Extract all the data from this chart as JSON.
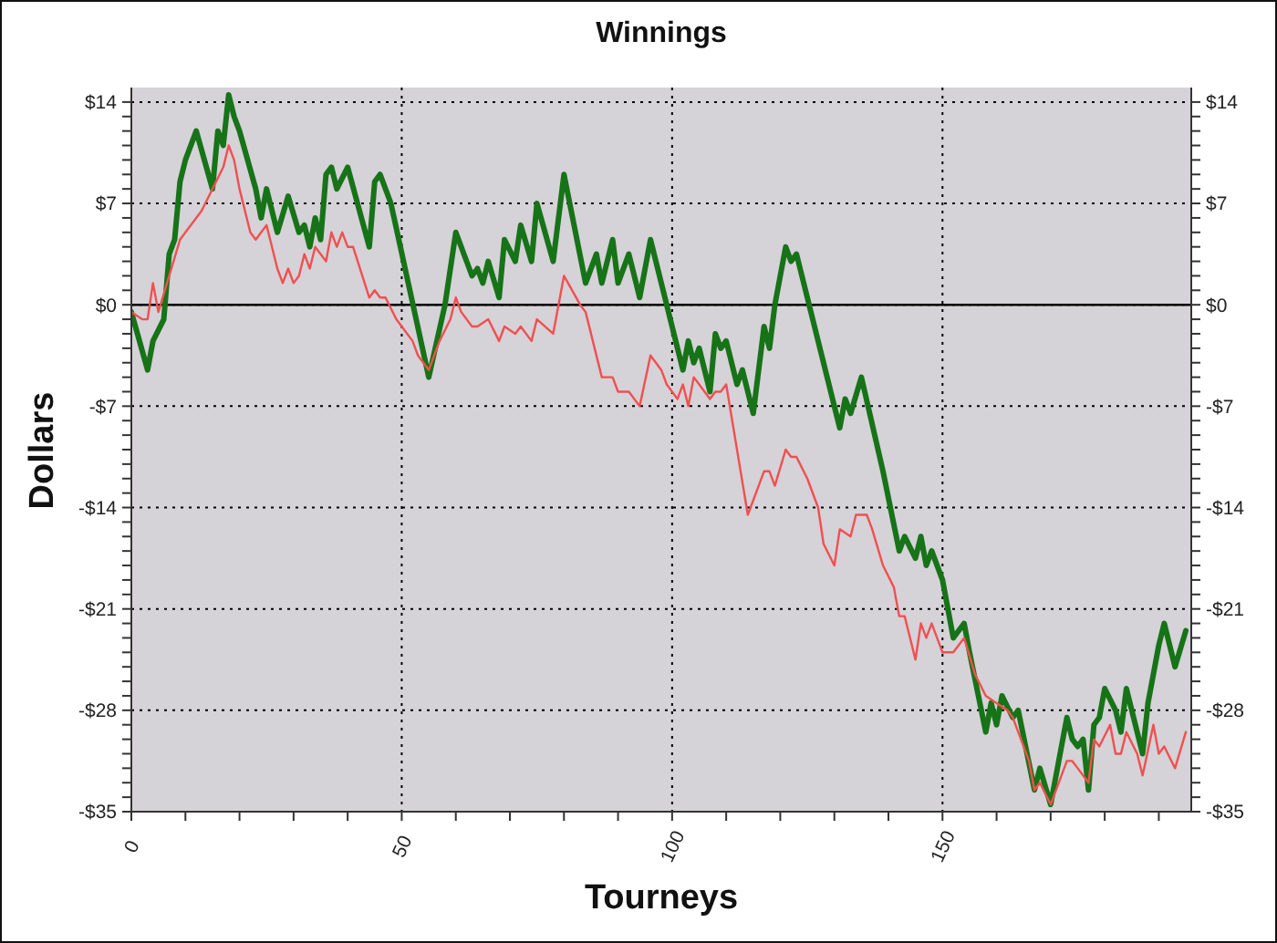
{
  "chart_data": {
    "type": "line",
    "title": "Winnings",
    "xlabel": "Tourneys",
    "ylabel": "Dollars",
    "series": [
      {
        "color": "#177317",
        "x": [
          0,
          3,
          4,
          6,
          7,
          8,
          9,
          10,
          12,
          15,
          16,
          17,
          18,
          19,
          20,
          23,
          24,
          25,
          27,
          29,
          31,
          32,
          33,
          34,
          35,
          36,
          37,
          38,
          40,
          44,
          45,
          46,
          48,
          55,
          58,
          60,
          63,
          64,
          65,
          66,
          68,
          69,
          71,
          72,
          74,
          75,
          78,
          80,
          84,
          86,
          87,
          89,
          90,
          92,
          94,
          96,
          99,
          102,
          103,
          104,
          105,
          107,
          108,
          109,
          110,
          112,
          113,
          115,
          117,
          118,
          119,
          121,
          122,
          123,
          131,
          132,
          133,
          135,
          139,
          142,
          143,
          145,
          146,
          147,
          148,
          150,
          152,
          154,
          155,
          158,
          159,
          160,
          161,
          163,
          164,
          167,
          168,
          170,
          173,
          174,
          175,
          176,
          177,
          178,
          179,
          180,
          182,
          183,
          184,
          187,
          188,
          190,
          191,
          193,
          195
        ],
        "values": [
          -0.5,
          -4.5,
          -2.5,
          -1,
          3.5,
          4.5,
          8.5,
          10,
          12,
          8,
          12,
          11,
          14.5,
          13,
          12,
          8,
          6,
          8,
          5,
          7.5,
          5,
          5.5,
          4,
          6,
          4.5,
          9,
          9.5,
          8,
          9.5,
          4,
          8.5,
          9,
          7,
          -5,
          0,
          5,
          2,
          2.5,
          1.5,
          3,
          0.5,
          4.5,
          3,
          5.5,
          3,
          7,
          3,
          9,
          1.5,
          3.5,
          1.5,
          4.5,
          1.5,
          3.5,
          0.5,
          4.5,
          0,
          -4.5,
          -2.5,
          -4,
          -3,
          -6,
          -2,
          -3,
          -2.5,
          -5.5,
          -4.5,
          -7.5,
          -1.5,
          -3,
          0,
          4,
          3,
          3.5,
          -8.5,
          -6.5,
          -7.5,
          -5,
          -11.5,
          -17,
          -16,
          -17.5,
          -16,
          -18,
          -17,
          -19,
          -23,
          -22,
          -24,
          -29.5,
          -27.5,
          -29,
          -27,
          -28.5,
          -28,
          -33.5,
          -32,
          -34.5,
          -28.5,
          -30,
          -30.5,
          -30,
          -33.5,
          -29,
          -28.5,
          -26.5,
          -28,
          -29.5,
          -26.5,
          -31,
          -27.5,
          -23.5,
          -22,
          -25,
          -22.5
        ]
      },
      {
        "color": "#f05050",
        "x": [
          0,
          2,
          3,
          4,
          5,
          7,
          9,
          10,
          12,
          13,
          15,
          17,
          18,
          19,
          20,
          22,
          23,
          25,
          27,
          28,
          29,
          30,
          31,
          32,
          33,
          34,
          36,
          37,
          38,
          39,
          40,
          41,
          44,
          45,
          46,
          47,
          49,
          50,
          52,
          53,
          55,
          57,
          59,
          60,
          61,
          63,
          64,
          66,
          68,
          69,
          71,
          72,
          74,
          75,
          78,
          80,
          83,
          84,
          87,
          89,
          90,
          92,
          94,
          96,
          98,
          99,
          101,
          102,
          103,
          104,
          105,
          107,
          108,
          109,
          110,
          114,
          117,
          118,
          119,
          121,
          122,
          123,
          125,
          127,
          128,
          130,
          131,
          133,
          134,
          136,
          137,
          139,
          141,
          142,
          143,
          145,
          146,
          147,
          148,
          150,
          152,
          154,
          156,
          158,
          160,
          162,
          163,
          164,
          166,
          167,
          168,
          170,
          172,
          173,
          174,
          175,
          177,
          178,
          179,
          181,
          182,
          183,
          184,
          186,
          187,
          189,
          190,
          191,
          193,
          195
        ],
        "values": [
          -0.5,
          -1,
          -1,
          1.5,
          -0.5,
          2,
          4.5,
          5,
          6,
          6.5,
          8,
          9.5,
          11,
          10,
          8,
          5,
          4.5,
          5.5,
          2.5,
          1.5,
          2.5,
          1.5,
          2,
          3.5,
          2.5,
          4,
          3,
          5,
          4,
          5,
          4,
          4,
          0.5,
          1,
          0.5,
          0.5,
          -1,
          -1.5,
          -2.5,
          -3.5,
          -4.5,
          -2.5,
          -1,
          0.5,
          -0.5,
          -1.5,
          -1.5,
          -1,
          -2.5,
          -1.5,
          -2,
          -1.5,
          -2.5,
          -1,
          -2,
          2,
          0,
          -0.5,
          -5,
          -5,
          -6,
          -6,
          -7,
          -3.5,
          -4.5,
          -5.5,
          -6.5,
          -5.5,
          -7,
          -5,
          -5.5,
          -6.5,
          -6,
          -6,
          -5.5,
          -14.5,
          -11.5,
          -11.5,
          -12.5,
          -10,
          -10.5,
          -10.5,
          -12,
          -14,
          -16.5,
          -18,
          -15.5,
          -16,
          -14.5,
          -14.5,
          -15.5,
          -18,
          -19.5,
          -21.5,
          -21.5,
          -24.5,
          -22,
          -23,
          -22,
          -24,
          -24,
          -23,
          -25.5,
          -27,
          -27.5,
          -28,
          -28.5,
          -29.5,
          -31.5,
          -33.5,
          -33,
          -34.5,
          -32.5,
          -31.5,
          -31.5,
          -32,
          -33,
          -30,
          -30.5,
          -29,
          -31,
          -31,
          -29.5,
          -31,
          -32.5,
          -29,
          -31,
          -30.5,
          -32,
          -29.5
        ]
      }
    ],
    "xlim": [
      0,
      196
    ],
    "xticks": [
      0,
      {
        "value": 10,
        "label": null
      },
      {
        "value": 20,
        "label": null
      },
      {
        "value": 30,
        "label": null
      },
      {
        "value": 40,
        "label": null
      },
      50,
      {
        "value": 60,
        "label": null
      },
      {
        "value": 70,
        "label": null
      },
      {
        "value": 80,
        "label": null
      },
      {
        "value": 90,
        "label": null
      },
      100,
      {
        "value": 110,
        "label": null
      },
      {
        "value": 120,
        "label": null
      },
      {
        "value": 130,
        "label": null
      },
      {
        "value": 140,
        "label": null
      },
      150,
      {
        "value": 160,
        "label": null
      },
      {
        "value": 170,
        "label": null
      },
      {
        "value": 180,
        "label": null
      },
      {
        "value": 190,
        "label": null
      }
    ],
    "ylim": [
      -35,
      15
    ],
    "yticks": [
      {
        "value": -35,
        "label": "-$35"
      },
      {
        "value": -34,
        "label": null
      },
      {
        "value": -33,
        "label": null
      },
      {
        "value": -32,
        "label": null
      },
      {
        "value": -31,
        "label": null
      },
      {
        "value": -30,
        "label": null
      },
      {
        "value": -29,
        "label": null
      },
      {
        "value": -28,
        "label": "-$28"
      },
      {
        "value": -27,
        "label": null
      },
      {
        "value": -26,
        "label": null
      },
      {
        "value": -25,
        "label": null
      },
      {
        "value": -24,
        "label": null
      },
      {
        "value": -23,
        "label": null
      },
      {
        "value": -22,
        "label": null
      },
      {
        "value": -21,
        "label": "-$21"
      },
      {
        "value": -20,
        "label": null
      },
      {
        "value": -19,
        "label": null
      },
      {
        "value": -18,
        "label": null
      },
      {
        "value": -17,
        "label": null
      },
      {
        "value": -16,
        "label": null
      },
      {
        "value": -15,
        "label": null
      },
      {
        "value": -14,
        "label": "-$14"
      },
      {
        "value": -13,
        "label": null
      },
      {
        "value": -12,
        "label": null
      },
      {
        "value": -11,
        "label": null
      },
      {
        "value": -10,
        "label": null
      },
      {
        "value": -9,
        "label": null
      },
      {
        "value": -8,
        "label": null
      },
      {
        "value": -7,
        "label": "-$7"
      },
      {
        "value": -6,
        "label": null
      },
      {
        "value": -5,
        "label": null
      },
      {
        "value": -4,
        "label": null
      },
      {
        "value": -3,
        "label": null
      },
      {
        "value": -2,
        "label": null
      },
      {
        "value": -1,
        "label": null
      },
      {
        "value": 0,
        "label": "$0"
      },
      {
        "value": 1,
        "label": null
      },
      {
        "value": 2,
        "label": null
      },
      {
        "value": 3,
        "label": null
      },
      {
        "value": 4,
        "label": null
      },
      {
        "value": 5,
        "label": null
      },
      {
        "value": 6,
        "label": null
      },
      {
        "value": 7,
        "label": "$7"
      },
      {
        "value": 8,
        "label": null
      },
      {
        "value": 9,
        "label": null
      },
      {
        "value": 10,
        "label": null
      },
      {
        "value": 11,
        "label": null
      },
      {
        "value": 12,
        "label": null
      },
      {
        "value": 13,
        "label": null
      },
      {
        "value": 14,
        "label": "$14"
      }
    ],
    "y2lim": [
      -35,
      15
    ],
    "y2ticks": [
      {
        "value": -35,
        "label": "-$35"
      },
      {
        "value": -34,
        "label": null
      },
      {
        "value": -33,
        "label": null
      },
      {
        "value": -32,
        "label": null
      },
      {
        "value": -31,
        "label": null
      },
      {
        "value": -30,
        "label": null
      },
      {
        "value": -29,
        "label": null
      },
      {
        "value": -28,
        "label": "-$28"
      },
      {
        "value": -27,
        "label": null
      },
      {
        "value": -26,
        "label": null
      },
      {
        "value": -25,
        "label": null
      },
      {
        "value": -24,
        "label": null
      },
      {
        "value": -23,
        "label": null
      },
      {
        "value": -22,
        "label": null
      },
      {
        "value": -21,
        "label": "-$21"
      },
      {
        "value": -20,
        "label": null
      },
      {
        "value": -19,
        "label": null
      },
      {
        "value": -18,
        "label": null
      },
      {
        "value": -17,
        "label": null
      },
      {
        "value": -16,
        "label": null
      },
      {
        "value": -15,
        "label": null
      },
      {
        "value": -14,
        "label": "-$14"
      },
      {
        "value": -13,
        "label": null
      },
      {
        "value": -12,
        "label": null
      },
      {
        "value": -11,
        "label": null
      },
      {
        "value": -10,
        "label": null
      },
      {
        "value": -9,
        "label": null
      },
      {
        "value": -8,
        "label": null
      },
      {
        "value": -7,
        "label": "-$7"
      },
      {
        "value": -6,
        "label": null
      },
      {
        "value": -5,
        "label": null
      },
      {
        "value": -4,
        "label": null
      },
      {
        "value": -3,
        "label": null
      },
      {
        "value": -2,
        "label": null
      },
      {
        "value": -1,
        "label": null
      },
      {
        "value": 0,
        "label": "$0"
      },
      {
        "value": 1,
        "label": null
      },
      {
        "value": 2,
        "label": null
      },
      {
        "value": 3,
        "label": null
      },
      {
        "value": 4,
        "label": null
      },
      {
        "value": 5,
        "label": null
      },
      {
        "value": 6,
        "label": null
      },
      {
        "value": 7,
        "label": "$7"
      },
      {
        "value": 8,
        "label": null
      },
      {
        "value": 9,
        "label": null
      },
      {
        "value": 10,
        "label": null
      },
      {
        "value": 11,
        "label": null
      },
      {
        "value": 12,
        "label": null
      },
      {
        "value": 13,
        "label": null
      },
      {
        "value": 14,
        "label": "$14"
      }
    ],
    "grid": true,
    "ref_lines": [
      {
        "axis": "y",
        "value": 0,
        "color": "#000000"
      }
    ]
  }
}
